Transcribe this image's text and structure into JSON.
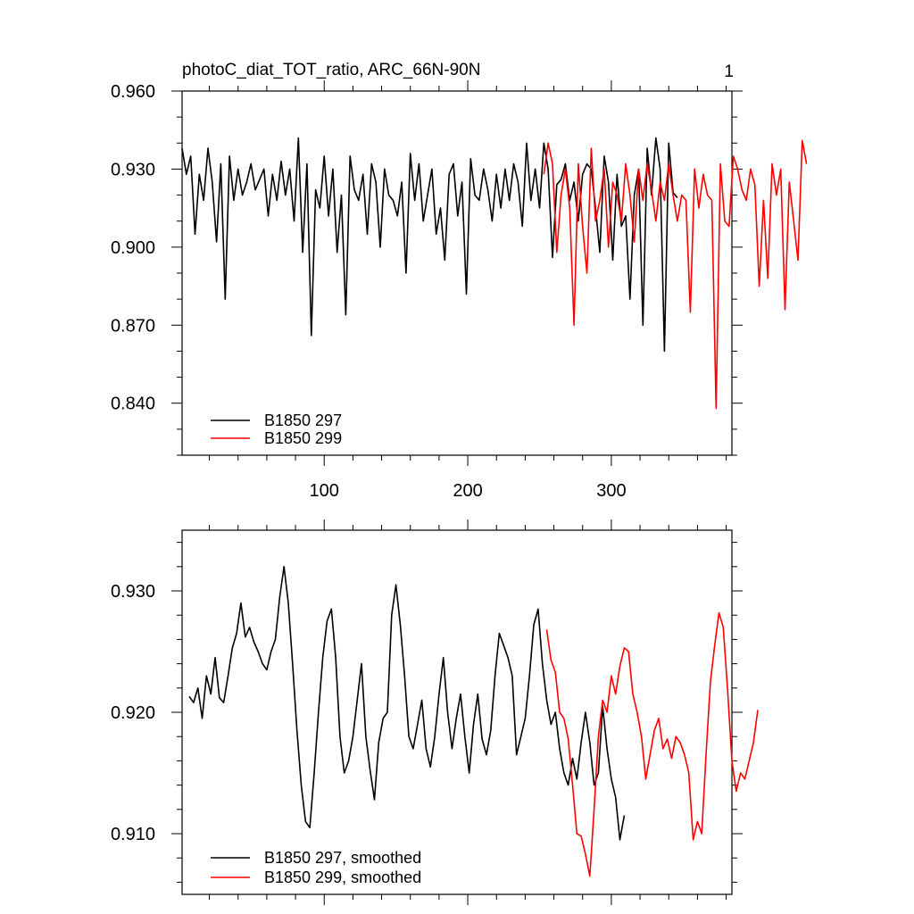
{
  "chart_data": [
    {
      "type": "line",
      "title": "photoC_diat_TOT_ratio, ARC_66N-90N",
      "corner_label": "1",
      "xlim": [
        1,
        384
      ],
      "ylim": [
        0.82,
        0.96
      ],
      "yticks": [
        "0.960",
        "0.930",
        "0.900",
        "0.870",
        "0.840"
      ],
      "ytick_values": [
        0.96,
        0.93,
        0.9,
        0.87,
        0.84
      ],
      "xticks": [
        "100",
        "200",
        "300"
      ],
      "xtick_values": [
        100,
        200,
        300
      ],
      "legend_location": "bottom-left",
      "series": [
        {
          "name": "B1850 297",
          "color": "#000000",
          "x_start": 1,
          "x_step": 3,
          "values": [
            0.938,
            0.928,
            0.935,
            0.905,
            0.928,
            0.918,
            0.938,
            0.925,
            0.902,
            0.932,
            0.88,
            0.935,
            0.918,
            0.93,
            0.92,
            0.925,
            0.932,
            0.922,
            0.926,
            0.93,
            0.912,
            0.928,
            0.918,
            0.933,
            0.92,
            0.93,
            0.91,
            0.942,
            0.898,
            0.932,
            0.866,
            0.922,
            0.915,
            0.935,
            0.912,
            0.93,
            0.898,
            0.92,
            0.874,
            0.935,
            0.922,
            0.918,
            0.928,
            0.905,
            0.932,
            0.925,
            0.9,
            0.93,
            0.92,
            0.918,
            0.912,
            0.925,
            0.89,
            0.936,
            0.918,
            0.932,
            0.91,
            0.92,
            0.93,
            0.905,
            0.915,
            0.895,
            0.928,
            0.932,
            0.912,
            0.925,
            0.882,
            0.934,
            0.92,
            0.918,
            0.93,
            0.922,
            0.91,
            0.928,
            0.915,
            0.93,
            0.918,
            0.932,
            0.925,
            0.908,
            0.94,
            0.918,
            0.93,
            0.915,
            0.94,
            0.93,
            0.896,
            0.924,
            0.926,
            0.932,
            0.918,
            0.925,
            0.91,
            0.928,
            0.932,
            0.93,
            0.915,
            0.898,
            0.935,
            0.925,
            0.895,
            0.928,
            0.908,
            0.912,
            0.88,
            0.92,
            0.93,
            0.87,
            0.938,
            0.92,
            0.942,
            0.93,
            0.86,
            0.94,
            0.921,
            0.919
          ]
        },
        {
          "name": "B1850 299",
          "color": "#ff0000",
          "x_start": 253,
          "x_step": 3,
          "values": [
            0.928,
            0.94,
            0.932,
            0.898,
            0.92,
            0.93,
            0.915,
            0.87,
            0.932,
            0.908,
            0.89,
            0.938,
            0.91,
            0.918,
            0.93,
            0.9,
            0.925,
            0.92,
            0.91,
            0.932,
            0.92,
            0.902,
            0.93,
            0.918,
            0.932,
            0.922,
            0.91,
            0.925,
            0.918,
            0.932,
            0.92,
            0.91,
            0.92,
            0.918,
            0.875,
            0.93,
            0.915,
            0.928,
            0.92,
            0.918,
            0.838,
            0.932,
            0.91,
            0.908,
            0.935,
            0.93,
            0.922,
            0.918,
            0.93,
            0.924,
            0.885,
            0.918,
            0.888,
            0.932,
            0.92,
            0.93,
            0.876,
            0.925,
            0.91,
            0.895,
            0.941,
            0.932
          ]
        }
      ]
    },
    {
      "type": "line",
      "xlim": [
        1,
        384
      ],
      "ylim": [
        0.905,
        0.935
      ],
      "yticks": [
        "0.930",
        "0.920",
        "0.910"
      ],
      "ytick_values": [
        0.93,
        0.92,
        0.91
      ],
      "legend_location": "bottom-left",
      "series": [
        {
          "name": "B1850 297, smoothed",
          "color": "#000000",
          "x_start": 6,
          "x_step": 3,
          "values": [
            0.9213,
            0.9208,
            0.922,
            0.9195,
            0.923,
            0.9215,
            0.9245,
            0.9212,
            0.9208,
            0.923,
            0.9253,
            0.9265,
            0.929,
            0.9262,
            0.927,
            0.9258,
            0.925,
            0.924,
            0.9235,
            0.925,
            0.926,
            0.9295,
            0.932,
            0.929,
            0.924,
            0.9185,
            0.914,
            0.911,
            0.9105,
            0.915,
            0.92,
            0.9245,
            0.9275,
            0.9285,
            0.9245,
            0.918,
            0.915,
            0.916,
            0.918,
            0.921,
            0.924,
            0.918,
            0.9152,
            0.9128,
            0.9175,
            0.9195,
            0.92,
            0.928,
            0.9305,
            0.9272,
            0.923,
            0.918,
            0.917,
            0.919,
            0.921,
            0.917,
            0.9155,
            0.918,
            0.9215,
            0.9245,
            0.92,
            0.917,
            0.9195,
            0.9215,
            0.918,
            0.915,
            0.919,
            0.9215,
            0.9178,
            0.9165,
            0.9185,
            0.923,
            0.9265,
            0.9255,
            0.9245,
            0.923,
            0.9165,
            0.918,
            0.9195,
            0.923,
            0.9272,
            0.9285,
            0.924,
            0.921,
            0.919,
            0.92,
            0.917,
            0.915,
            0.914,
            0.9162,
            0.9145,
            0.9175,
            0.92,
            0.9175,
            0.914,
            0.915,
            0.9205,
            0.917,
            0.9145,
            0.913,
            0.9095,
            0.9115
          ]
        },
        {
          "name": "B1850 299, smoothed",
          "color": "#ff0000",
          "x_start": 255,
          "x_step": 3,
          "values": [
            0.9268,
            0.9243,
            0.9233,
            0.92,
            0.9195,
            0.9178,
            0.914,
            0.91,
            0.9098,
            0.9083,
            0.9065,
            0.912,
            0.918,
            0.921,
            0.92,
            0.923,
            0.9215,
            0.9238,
            0.9253,
            0.925,
            0.9215,
            0.92,
            0.918,
            0.9145,
            0.9165,
            0.9185,
            0.9195,
            0.917,
            0.9178,
            0.9162,
            0.918,
            0.9175,
            0.9165,
            0.915,
            0.9095,
            0.911,
            0.91,
            0.9165,
            0.9225,
            0.9255,
            0.9282,
            0.927,
            0.9218,
            0.916,
            0.9135,
            0.915,
            0.9145,
            0.916,
            0.9175,
            0.9202
          ]
        }
      ]
    }
  ]
}
